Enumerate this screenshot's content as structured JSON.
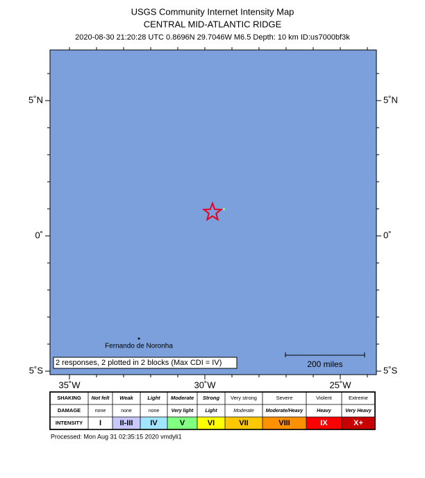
{
  "header": {
    "title": "USGS Community Internet Intensity Map",
    "region": "CENTRAL MID-ATLANTIC RIDGE",
    "event": "2020-08-30 21:20:28 UTC 0.8696N 29.7046W M6.5 Depth: 10 km ID:us7000bf3k"
  },
  "map": {
    "lat_ticks": [
      {
        "value": 5,
        "label": "5˚N"
      },
      {
        "value": 0,
        "label": "0˚"
      },
      {
        "value": -5,
        "label": "5˚S"
      }
    ],
    "lon_ticks": [
      {
        "value": -35,
        "label": "35˚W"
      },
      {
        "value": -30,
        "label": "30˚W"
      },
      {
        "value": -25,
        "label": "25˚W"
      }
    ],
    "place": "Fernando de Noronha",
    "responses_note": "2 responses, 2 plotted in 2 blocks (Max CDI = IV)",
    "scale_bar": "200 miles"
  },
  "legend": {
    "row_labels": [
      "SHAKING",
      "DAMAGE",
      "INTENSITY"
    ],
    "shaking": [
      "Not felt",
      "Weak",
      "Light",
      "Moderate",
      "Strong",
      "Very strong",
      "Severe",
      "Violent",
      "Extreme"
    ],
    "damage": [
      "none",
      "none",
      "none",
      "Very light",
      "Light",
      "Moderate",
      "Moderate/Heavy",
      "Heavy",
      "Very Heavy"
    ],
    "intensity": [
      "I",
      "II-III",
      "IV",
      "V",
      "VI",
      "VII",
      "VIII",
      "IX",
      "X+"
    ],
    "colors": [
      "#ffffff",
      "#c8c8ff",
      "#a0e6ff",
      "#80ff80",
      "#ffff00",
      "#ffc800",
      "#ff9100",
      "#ff0000",
      "#c80000"
    ]
  },
  "footer": "Processed: Mon Aug 31 02:35:15 2020 vmdyli1"
}
